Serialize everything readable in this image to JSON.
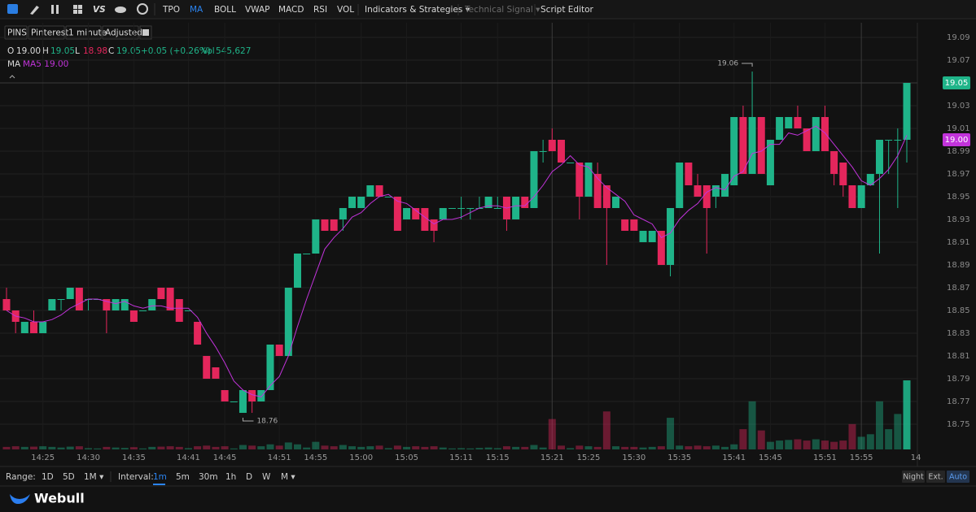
{
  "toolbar": {
    "items": [
      "TPO",
      "MA",
      "BOLL",
      "VWAP",
      "MACD",
      "RSI",
      "VOL",
      "Indicators & Strategies ▾",
      "Technical Signal ▾",
      "Script Editor"
    ],
    "vs": "VS"
  },
  "symbol_bar": {
    "items": [
      "PINS",
      "Pinterest",
      "1 minute",
      "Adjusted"
    ]
  },
  "legend_bar": {
    "o_label": "O",
    "open": "19.00",
    "h_label": "H",
    "high": "19.05",
    "l_label": "L",
    "low": "18.98",
    "c_label": "C",
    "close": "19.05",
    "change": "+0.05 (+0.26%)",
    "vol_label": "Vol",
    "volume": "545,627",
    "ma_label": "MA",
    "ma_value": "MA5 19.00"
  },
  "chart_data": {
    "type": "candlestick",
    "categories": [
      null,
      null,
      null,
      null,
      "14:25",
      null,
      null,
      null,
      null,
      "14:30",
      null,
      null,
      null,
      null,
      "14:35",
      null,
      null,
      null,
      null,
      null,
      "14:41",
      null,
      null,
      null,
      "14:45",
      null,
      null,
      null,
      null,
      null,
      "14:51",
      null,
      null,
      null,
      "14:55",
      null,
      null,
      null,
      null,
      "15:00",
      null,
      null,
      null,
      null,
      "15:05",
      null,
      null,
      null,
      null,
      null,
      "15:11",
      null,
      null,
      null,
      "15:15",
      null,
      null,
      null,
      null,
      null,
      "15:21",
      null,
      null,
      null,
      "15:25",
      null,
      null,
      null,
      null,
      "15:30",
      null,
      null,
      null,
      null,
      "15:35",
      null,
      null,
      null,
      null,
      null,
      "15:41",
      null,
      null,
      null,
      "15:45",
      null,
      null,
      null,
      null,
      null,
      "15:51",
      null,
      null,
      null,
      "15:55",
      null,
      null,
      null,
      null,
      null
    ],
    "x_end_label": "14",
    "open": [
      18.86,
      18.85,
      18.83,
      18.84,
      18.83,
      18.85,
      18.86,
      18.86,
      18.87,
      18.86,
      18.86,
      18.86,
      18.85,
      18.85,
      18.85,
      18.85,
      18.85,
      18.87,
      18.87,
      18.86,
      18.85,
      18.84,
      18.81,
      18.8,
      18.78,
      18.77,
      18.76,
      18.78,
      18.77,
      18.78,
      18.82,
      18.81,
      18.87,
      18.9,
      18.9,
      18.93,
      18.93,
      18.93,
      18.94,
      18.94,
      18.95,
      18.96,
      18.95,
      18.95,
      18.93,
      18.94,
      18.94,
      18.93,
      18.93,
      18.94,
      18.94,
      18.94,
      18.94,
      18.94,
      18.94,
      18.95,
      18.93,
      18.95,
      18.94,
      18.99,
      19.0,
      19.0,
      18.98,
      18.98,
      18.95,
      18.97,
      18.96,
      18.94,
      18.93,
      18.93,
      18.91,
      18.91,
      18.92,
      18.89,
      18.94,
      18.98,
      18.96,
      18.96,
      18.95,
      18.95,
      18.96,
      19.02,
      18.97,
      19.02,
      18.96,
      19.0,
      19.01,
      19.02,
      19.01,
      18.99,
      19.02,
      18.99,
      18.98,
      18.96,
      18.94,
      18.96,
      18.97,
      19.0,
      19.0,
      19.0
    ],
    "high": [
      18.87,
      18.85,
      18.84,
      18.85,
      18.84,
      18.86,
      18.86,
      18.87,
      18.87,
      18.86,
      18.86,
      18.86,
      18.86,
      18.86,
      18.85,
      18.85,
      18.86,
      18.87,
      18.87,
      18.86,
      18.85,
      18.84,
      18.81,
      18.8,
      18.78,
      18.77,
      18.78,
      18.78,
      18.78,
      18.82,
      18.82,
      18.87,
      18.9,
      18.9,
      18.93,
      18.93,
      18.93,
      18.94,
      18.95,
      18.95,
      18.96,
      18.96,
      18.95,
      18.95,
      18.94,
      18.94,
      18.94,
      18.93,
      18.94,
      18.94,
      18.95,
      18.94,
      18.95,
      18.95,
      18.95,
      18.95,
      18.95,
      18.95,
      18.99,
      19.0,
      19.01,
      19.0,
      18.98,
      18.98,
      18.98,
      18.98,
      18.96,
      18.95,
      18.93,
      18.93,
      18.92,
      18.92,
      18.92,
      18.94,
      18.98,
      18.98,
      18.97,
      18.96,
      18.96,
      18.97,
      19.02,
      19.03,
      19.06,
      19.02,
      19.0,
      19.02,
      19.02,
      19.03,
      19.01,
      19.02,
      19.03,
      18.99,
      18.98,
      18.96,
      18.96,
      18.97,
      19.0,
      19.0,
      19.01,
      19.05
    ],
    "low": [
      18.85,
      18.83,
      18.83,
      18.83,
      18.83,
      18.85,
      18.85,
      18.86,
      18.85,
      18.85,
      18.86,
      18.83,
      18.85,
      18.85,
      18.84,
      18.85,
      18.85,
      18.86,
      18.85,
      18.84,
      18.85,
      18.82,
      18.79,
      18.79,
      18.77,
      18.77,
      18.76,
      18.76,
      18.77,
      18.78,
      18.81,
      18.81,
      18.87,
      18.9,
      18.9,
      18.92,
      18.92,
      18.92,
      18.94,
      18.94,
      18.95,
      18.95,
      18.95,
      18.92,
      18.93,
      18.93,
      18.92,
      18.91,
      18.93,
      18.94,
      18.93,
      18.93,
      18.94,
      18.94,
      18.94,
      18.92,
      18.93,
      18.94,
      18.94,
      18.98,
      18.99,
      18.98,
      18.98,
      18.93,
      18.95,
      18.94,
      18.89,
      18.94,
      18.92,
      18.92,
      18.91,
      18.91,
      18.89,
      18.88,
      18.94,
      18.96,
      18.95,
      18.9,
      18.94,
      18.95,
      18.96,
      18.97,
      18.97,
      18.97,
      18.96,
      19.0,
      19.01,
      19.01,
      18.99,
      18.99,
      18.99,
      18.96,
      18.95,
      18.94,
      18.94,
      18.96,
      18.9,
      18.97,
      18.94,
      18.98
    ],
    "close": [
      18.85,
      18.84,
      18.84,
      18.83,
      18.84,
      18.86,
      18.86,
      18.87,
      18.85,
      18.86,
      18.86,
      18.85,
      18.86,
      18.86,
      18.84,
      18.85,
      18.86,
      18.86,
      18.85,
      18.84,
      18.85,
      18.82,
      18.79,
      18.79,
      18.77,
      18.77,
      18.78,
      18.77,
      18.78,
      18.82,
      18.81,
      18.87,
      18.9,
      18.9,
      18.93,
      18.92,
      18.92,
      18.94,
      18.95,
      18.95,
      18.96,
      18.95,
      18.95,
      18.92,
      18.94,
      18.93,
      18.92,
      18.92,
      18.94,
      18.94,
      18.94,
      18.94,
      18.94,
      18.95,
      18.94,
      18.93,
      18.95,
      18.94,
      18.99,
      18.99,
      18.99,
      18.98,
      18.98,
      18.95,
      18.98,
      18.94,
      18.94,
      18.95,
      18.92,
      18.92,
      18.92,
      18.92,
      18.89,
      18.94,
      18.98,
      18.96,
      18.95,
      18.94,
      18.96,
      18.97,
      19.02,
      18.97,
      19.02,
      18.97,
      19.0,
      19.02,
      19.02,
      19.01,
      18.99,
      19.02,
      18.99,
      18.97,
      18.96,
      18.94,
      18.96,
      18.97,
      19.0,
      19.0,
      19.0,
      19.05
    ],
    "volume": [
      20000,
      25000,
      20000,
      22000,
      25000,
      20000,
      15000,
      22000,
      25000,
      10000,
      8000,
      20000,
      15000,
      12000,
      18000,
      8000,
      20000,
      22000,
      25000,
      20000,
      10000,
      25000,
      30000,
      20000,
      25000,
      8000,
      35000,
      30000,
      25000,
      40000,
      30000,
      55000,
      40000,
      15000,
      60000,
      30000,
      25000,
      35000,
      25000,
      20000,
      25000,
      30000,
      10000,
      30000,
      20000,
      25000,
      20000,
      25000,
      15000,
      8000,
      10000,
      8000,
      12000,
      15000,
      10000,
      25000,
      20000,
      20000,
      35000,
      15000,
      240000,
      30000,
      10000,
      30000,
      25000,
      20000,
      300000,
      25000,
      20000,
      20000,
      15000,
      20000,
      25000,
      250000,
      30000,
      25000,
      30000,
      25000,
      30000,
      20000,
      40000,
      160000,
      380000,
      150000,
      60000,
      70000,
      75000,
      80000,
      70000,
      80000,
      70000,
      60000,
      70000,
      200000,
      100000,
      120000,
      380000,
      160000,
      280000,
      545627
    ],
    "up_color": "#1fb489",
    "down_color": "#e4265c",
    "ma_color": "#c233db",
    "ma_period": 5,
    "ylim": [
      18.73,
      19.1
    ],
    "yticks": [
      19.09,
      19.07,
      19.05,
      19.03,
      19.01,
      18.99,
      18.97,
      18.95,
      18.93,
      18.91,
      18.89,
      18.87,
      18.85,
      18.83,
      18.81,
      18.79,
      18.77,
      18.75
    ],
    "last_price_label": 19.05,
    "ma_price_label": {
      "value": 19.0,
      "label": "19.00"
    },
    "high_annotation": 19.06,
    "low_annotation": 18.76,
    "grid": true
  },
  "bottom_bar": {
    "range_label": "Range:",
    "ranges": [
      "1D",
      "5D",
      "1M ▾"
    ],
    "interval_label": "Interval:",
    "intervals": [
      "1m",
      "5m",
      "30m",
      "1h",
      "D",
      "W",
      "M ▾"
    ],
    "sessions": [
      "Night",
      "Ext.",
      "Auto"
    ],
    "brand": "Webull"
  }
}
